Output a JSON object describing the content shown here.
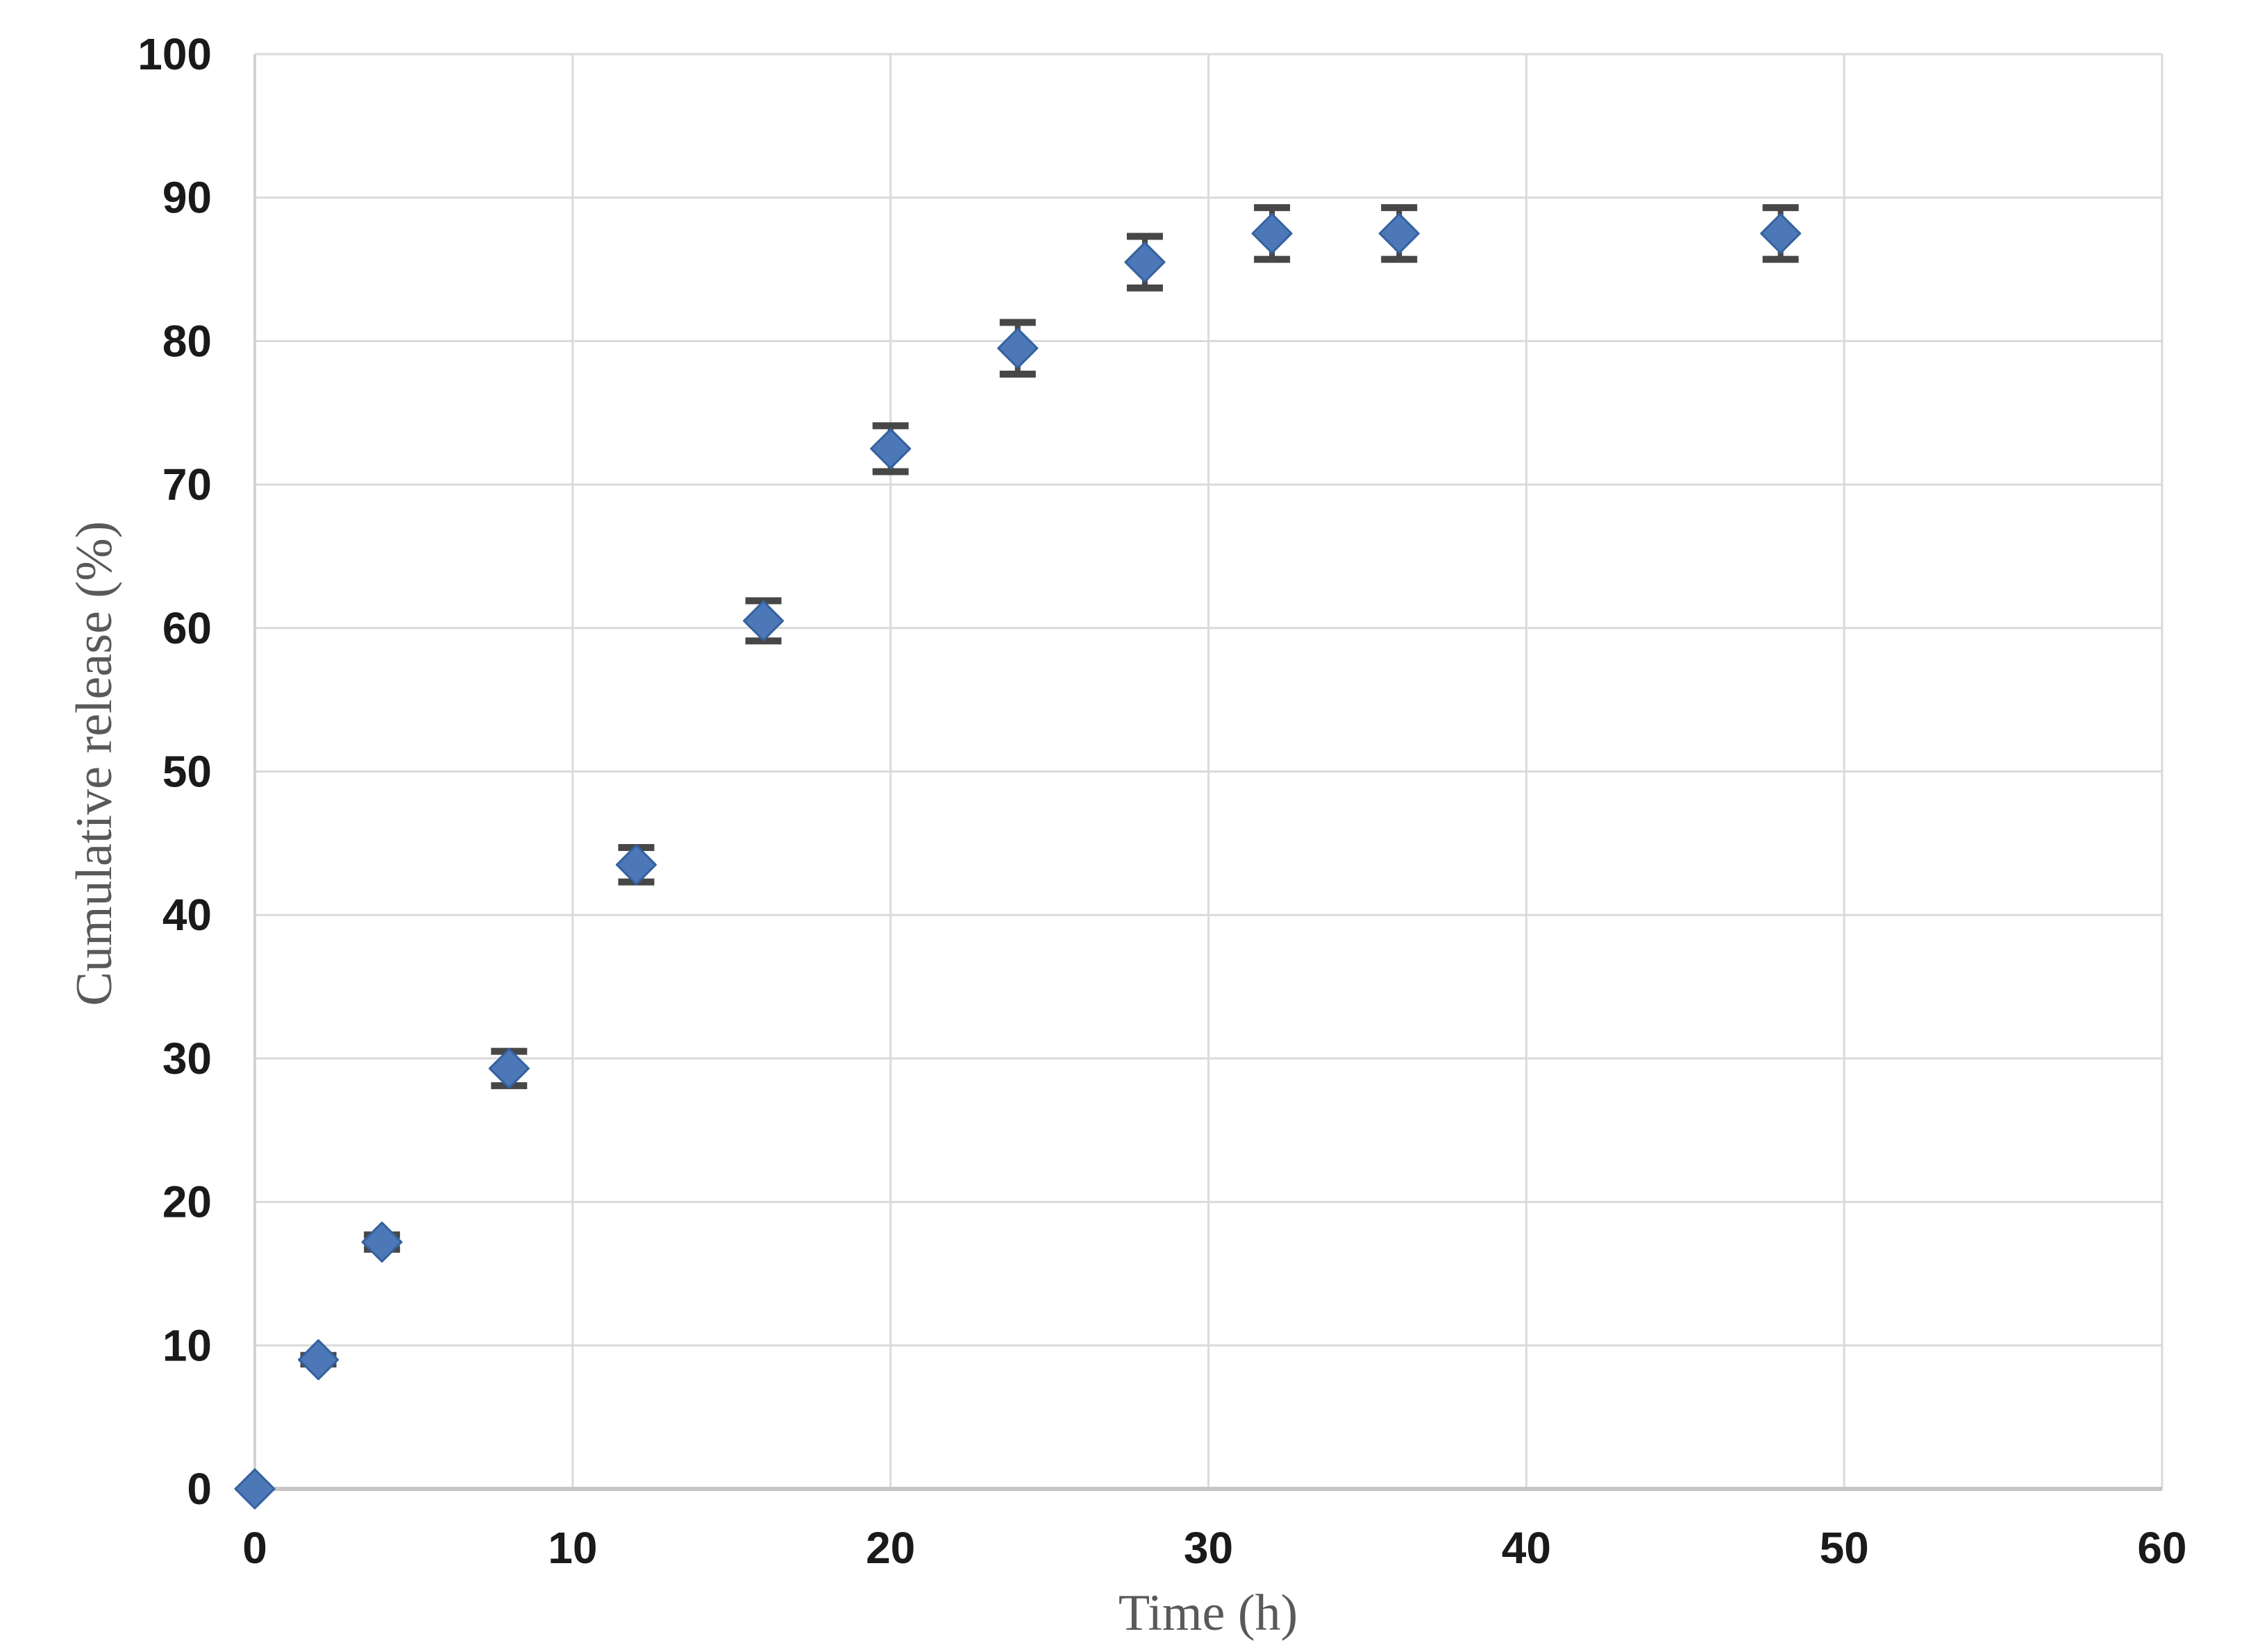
{
  "chart_data": {
    "type": "scatter",
    "title": "",
    "xlabel": "Time (h)",
    "ylabel": "Cumulative release (%)",
    "xlim": [
      0,
      60
    ],
    "ylim": [
      0,
      100
    ],
    "x_ticks": [
      0,
      10,
      20,
      30,
      40,
      50,
      60
    ],
    "y_ticks": [
      0,
      10,
      20,
      30,
      40,
      50,
      60,
      70,
      80,
      90,
      100
    ],
    "grid": true,
    "legend": false,
    "series": [
      {
        "name": "cumulative-release",
        "marker": "diamond",
        "points": [
          {
            "x": 0,
            "y": 0,
            "err": 0
          },
          {
            "x": 2,
            "y": 9,
            "err": 0.3
          },
          {
            "x": 4,
            "y": 17.2,
            "err": 0.5
          },
          {
            "x": 8,
            "y": 29.3,
            "err": 1.2
          },
          {
            "x": 12,
            "y": 43.5,
            "err": 1.2
          },
          {
            "x": 16,
            "y": 60.5,
            "err": 1.4
          },
          {
            "x": 20,
            "y": 72.5,
            "err": 1.6
          },
          {
            "x": 24,
            "y": 79.5,
            "err": 1.8
          },
          {
            "x": 28,
            "y": 85.5,
            "err": 1.8
          },
          {
            "x": 32,
            "y": 87.5,
            "err": 1.8
          },
          {
            "x": 36,
            "y": 87.5,
            "err": 1.8
          },
          {
            "x": 48,
            "y": 87.5,
            "err": 1.8
          }
        ]
      }
    ],
    "colors": {
      "marker_fill": "#4C78B8",
      "marker_edge": "#35619E",
      "error_bar": "#474747",
      "gridline": "#dadada",
      "axis_line_left": "#d2d2d2",
      "axis_line_bottom": "#c6c6c6",
      "tick_label": "#1a1a1a",
      "axis_title": "#595959",
      "background": "#ffffff"
    }
  }
}
